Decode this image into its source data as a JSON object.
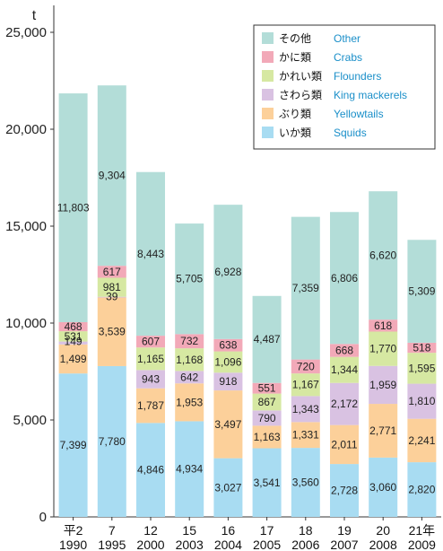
{
  "chart_data": {
    "type": "bar",
    "stacked": true,
    "unit": "t",
    "ylim": [
      0,
      25000
    ],
    "yticks": [
      "0",
      "5,000",
      "10,000",
      "15,000",
      "20,000",
      "25,000"
    ],
    "yticks_values": [
      0,
      5000,
      10000,
      15000,
      20000,
      25000
    ],
    "categories": [
      {
        "top": "平2",
        "bottom": "1990"
      },
      {
        "top": "7",
        "bottom": "1995"
      },
      {
        "top": "12",
        "bottom": "2000"
      },
      {
        "top": "15",
        "bottom": "2003"
      },
      {
        "top": "16",
        "bottom": "2004"
      },
      {
        "top": "17",
        "bottom": "2005"
      },
      {
        "top": "18",
        "bottom": "2006"
      },
      {
        "top": "19",
        "bottom": "2007"
      },
      {
        "top": "20",
        "bottom": "2008"
      },
      {
        "top": "21年",
        "bottom": "2009"
      }
    ],
    "series": [
      {
        "name_jp": "いか類",
        "name_en": "Squids",
        "color": "#a8dcf2",
        "values": [
          7399,
          7780,
          4846,
          4934,
          3027,
          3541,
          3560,
          2728,
          3060,
          2820
        ],
        "labels": [
          "7,399",
          "7,780",
          "4,846",
          "4,934",
          "3,027",
          "3,541",
          "3,560",
          "2,728",
          "3,060",
          "2,820"
        ]
      },
      {
        "name_jp": "ぶり類",
        "name_en": "Yellowtails",
        "color": "#fcd09a",
        "values": [
          1499,
          3539,
          1787,
          1953,
          3497,
          1163,
          1331,
          2011,
          2771,
          2241
        ],
        "labels": [
          "1,499",
          "3,539",
          "1,787",
          "1,953",
          "3,497",
          "1,163",
          "1,331",
          "2,011",
          "2,771",
          "2,241"
        ]
      },
      {
        "name_jp": "さわら類",
        "name_en": "King mackerels",
        "color": "#d9c2e2",
        "values": [
          149,
          39,
          943,
          642,
          918,
          790,
          1343,
          2172,
          1959,
          1810
        ],
        "labels": [
          "149",
          "39",
          "943",
          "642",
          "918",
          "790",
          "1,343",
          "2,172",
          "1,959",
          "1,810"
        ]
      },
      {
        "name_jp": "かれい類",
        "name_en": "Flounders",
        "color": "#d6e8a2",
        "values": [
          531,
          981,
          1165,
          1168,
          1096,
          867,
          1167,
          1344,
          1770,
          1595
        ],
        "labels": [
          "531",
          "981",
          "1,165",
          "1,168",
          "1,096",
          "867",
          "1,167",
          "1,344",
          "1,770",
          "1,595"
        ]
      },
      {
        "name_jp": "かに類",
        "name_en": "Crabs",
        "color": "#f2a9b8",
        "values": [
          468,
          617,
          607,
          732,
          638,
          551,
          720,
          668,
          618,
          518
        ],
        "labels": [
          "468",
          "617",
          "607",
          "732",
          "638",
          "551",
          "720",
          "668",
          "618",
          "518"
        ]
      },
      {
        "name_jp": "その他",
        "name_en": "Other",
        "color": "#b3ddd8",
        "values": [
          11803,
          9304,
          8443,
          5705,
          6928,
          4487,
          7359,
          6806,
          6620,
          5309
        ],
        "labels": [
          "11,803",
          "9,304",
          "8,443",
          "5,705",
          "6,928",
          "4,487",
          "7,359",
          "6,806",
          "6,620",
          "5,309"
        ]
      }
    ],
    "legend_order": [
      5,
      4,
      3,
      2,
      1,
      0
    ],
    "legend_position": "top-right",
    "grid": false
  }
}
